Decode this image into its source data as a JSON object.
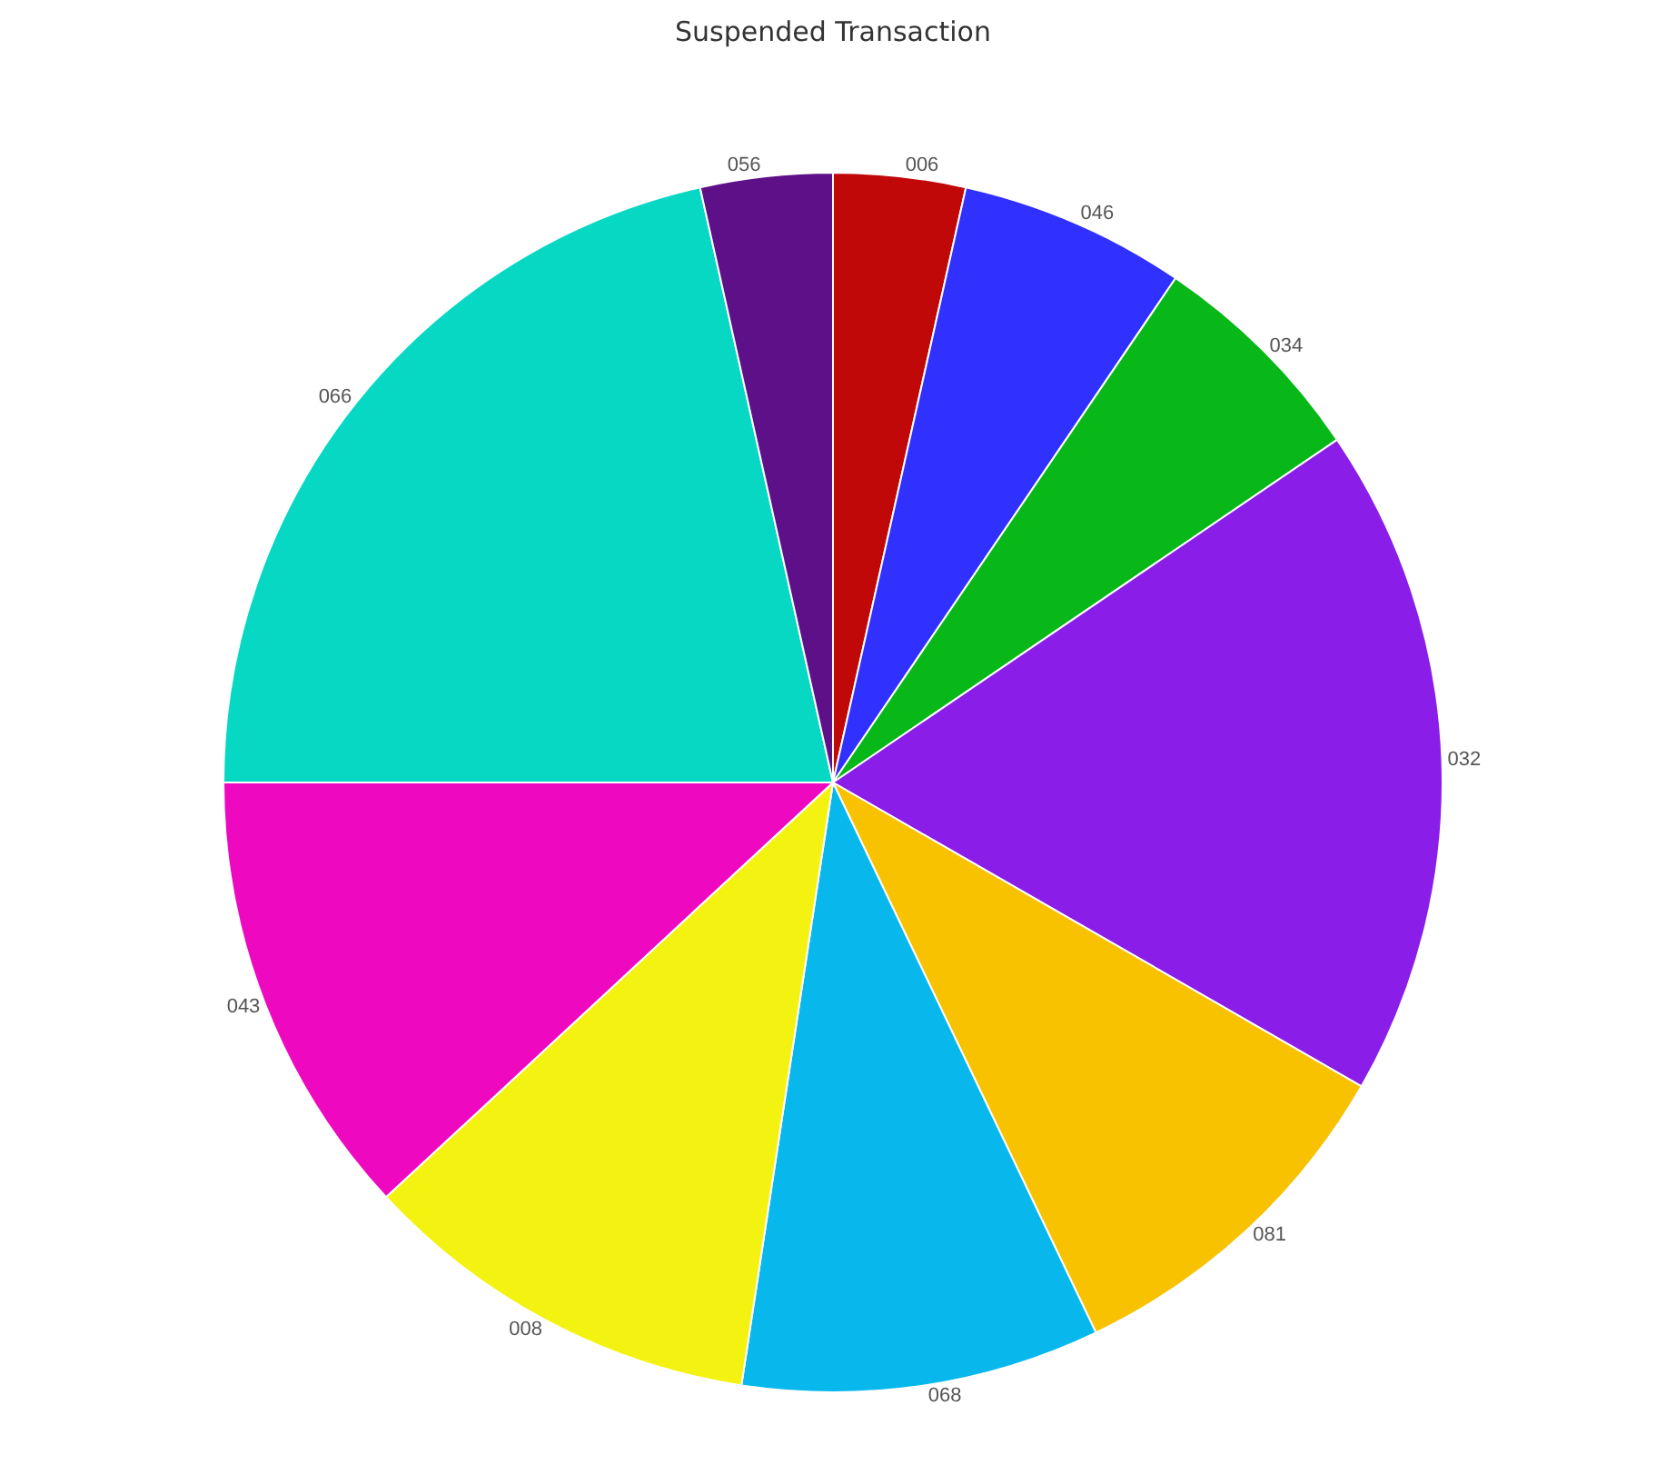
{
  "chart_data": {
    "type": "pie",
    "title": "Suspended Transaction",
    "categories": [
      "006",
      "046",
      "034",
      "032",
      "081",
      "068",
      "008",
      "043",
      "066",
      "056"
    ],
    "values": [
      3.5,
      6,
      6,
      17.8,
      9.6,
      9.5,
      10.7,
      11.9,
      21.5,
      3.5
    ],
    "colors": [
      "#c00808",
      "#3030ff",
      "#08b818",
      "#8a1ee8",
      "#f8c200",
      "#08b8ec",
      "#f4f210",
      "#ee08c0",
      "#06d8c4",
      "#5e1088"
    ],
    "legend": false
  }
}
